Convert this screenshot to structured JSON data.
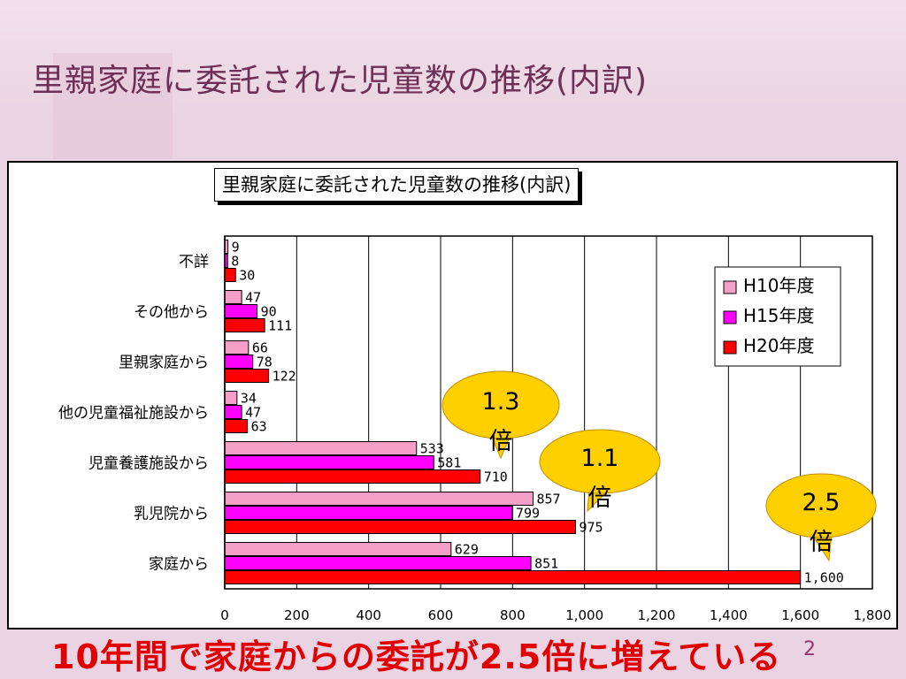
{
  "slide": {
    "title": "里親家庭に委託された児童数の推移(内訳)",
    "note": "10年間で家庭からの委託が2.5倍に増えている",
    "page_number": "2"
  },
  "callouts": [
    {
      "text": "1.3倍",
      "line1": "1.3",
      "line2": "倍"
    },
    {
      "text": "1.1倍",
      "line1": "1.1",
      "line2": "倍"
    },
    {
      "text": "2.5倍",
      "line1": "2.5",
      "line2": "倍"
    }
  ],
  "chart_data": {
    "type": "bar",
    "orientation": "horizontal",
    "title": "里親家庭に委託された児童数の推移(内訳)",
    "categories": [
      "不詳",
      "その他から",
      "里親家庭から",
      "他の児童福祉施設から",
      "児童養護施設から",
      "乳児院から",
      "家庭から"
    ],
    "series": [
      {
        "name": "H10年度",
        "color": "#f59fc8",
        "values": [
          9,
          47,
          66,
          34,
          533,
          857,
          629
        ],
        "labels": [
          "9",
          "47",
          "66",
          "34",
          "533",
          "857",
          "629"
        ]
      },
      {
        "name": "H15年度",
        "color": "#ff00ff",
        "values": [
          8,
          90,
          78,
          47,
          581,
          799,
          851
        ],
        "labels": [
          "8",
          "90",
          "78",
          "47",
          "581",
          "799",
          "851"
        ]
      },
      {
        "name": "H20年度",
        "color": "#ff0000",
        "values": [
          30,
          111,
          122,
          63,
          710,
          975,
          1600
        ],
        "labels": [
          "30",
          "111",
          "122",
          "63",
          "710",
          "975",
          "1,600"
        ]
      }
    ],
    "xlim": [
      0,
      1800
    ],
    "x_ticks": [
      0,
      200,
      400,
      600,
      800,
      1000,
      1200,
      1400,
      1600,
      1800
    ],
    "x_tick_labels": [
      "0",
      "200",
      "400",
      "600",
      "800",
      "1,000",
      "1,200",
      "1,400",
      "1,600",
      "1,800"
    ],
    "grid": true,
    "legend": "top-right"
  },
  "colors": {
    "background": "#ead3e2",
    "title": "#6e2f55",
    "note": "#e00000",
    "callout_fill": "#ffd000"
  }
}
